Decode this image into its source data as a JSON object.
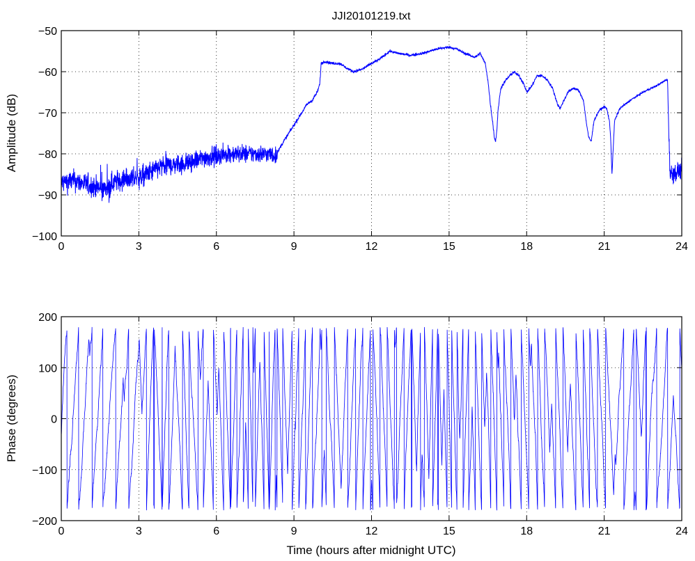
{
  "figure": {
    "background": "#ffffff",
    "line_color": "#0000ff"
  },
  "chart_data": [
    {
      "type": "line",
      "title": "JJI20101219.txt",
      "xlabel": "",
      "ylabel": "Amplitude (dB)",
      "xlim": [
        0,
        24
      ],
      "ylim": [
        -100,
        -50
      ],
      "xticks": [
        0,
        3,
        6,
        9,
        12,
        15,
        18,
        21,
        24
      ],
      "yticks": [
        -100,
        -90,
        -80,
        -70,
        -60,
        -50
      ],
      "grid": true,
      "series": [
        {
          "color": "#0000ff",
          "noise_amplitude": [
            [
              0,
              2.5
            ],
            [
              3.3,
              2.5
            ],
            [
              6.0,
              2.2
            ],
            [
              8.3,
              2.0
            ],
            [
              8.4,
              0.4
            ],
            [
              10.0,
              0.4
            ],
            [
              10.3,
              0.3
            ],
            [
              16.0,
              0.3
            ],
            [
              16.6,
              0.4
            ],
            [
              23.45,
              0.2
            ],
            [
              23.55,
              2.2
            ],
            [
              24,
              2.2
            ]
          ],
          "x": [
            0,
            0.5,
            1.0,
            1.5,
            1.8,
            2.0,
            2.5,
            3.0,
            3.3,
            3.45,
            3.6,
            3.7,
            4.0,
            4.5,
            5.0,
            5.5,
            6.0,
            6.5,
            7.0,
            7.5,
            7.7,
            7.75,
            8.0,
            8.3,
            8.5,
            8.8,
            9.0,
            9.3,
            9.5,
            9.7,
            9.9,
            10.0,
            10.05,
            10.2,
            10.5,
            10.8,
            11.0,
            11.3,
            11.6,
            12.0,
            12.3,
            12.7,
            13.0,
            13.5,
            14.0,
            14.5,
            15.0,
            15.3,
            15.6,
            16.0,
            16.2,
            16.4,
            16.5,
            16.6,
            16.7,
            16.75,
            16.8,
            16.85,
            16.9,
            17.0,
            17.2,
            17.5,
            17.7,
            17.9,
            18.0,
            18.2,
            18.4,
            18.6,
            18.8,
            19.0,
            19.2,
            19.3,
            19.4,
            19.6,
            19.8,
            20.0,
            20.2,
            20.3,
            20.4,
            20.5,
            20.6,
            20.8,
            21.0,
            21.1,
            21.2,
            21.25,
            21.3,
            21.4,
            21.6,
            22.0,
            22.5,
            23.0,
            23.4,
            23.45,
            23.5,
            23.55,
            24.0
          ],
          "y": [
            -87,
            -86.5,
            -87.5,
            -88.5,
            -88.5,
            -87,
            -86,
            -86,
            -85,
            -84.5,
            -84,
            -83.5,
            -83,
            -82.5,
            -82,
            -81,
            -80.5,
            -80,
            -80,
            -80,
            -80,
            -80,
            -80,
            -80.5,
            -78,
            -75,
            -73,
            -70,
            -68,
            -67,
            -65,
            -63,
            -58,
            -57.5,
            -58,
            -58,
            -59,
            -60,
            -59.5,
            -58,
            -57,
            -55,
            -55.5,
            -56,
            -55.5,
            -54.5,
            -54,
            -54.5,
            -55.5,
            -56.5,
            -55.5,
            -58,
            -62,
            -68,
            -73,
            -76,
            -77,
            -74,
            -69,
            -64,
            -62,
            -60,
            -61,
            -63,
            -65,
            -63.5,
            -61,
            -61,
            -62,
            -64,
            -68,
            -69,
            -67.5,
            -65,
            -64,
            -64.5,
            -67,
            -72,
            -76,
            -77,
            -72,
            -69.5,
            -68.5,
            -69,
            -72,
            -76,
            -85,
            -72,
            -69,
            -67,
            -65,
            -63.5,
            -62,
            -62,
            -75,
            -85,
            -84
          ]
        }
      ]
    },
    {
      "type": "line",
      "title": "",
      "xlabel": "Time (hours after midnight UTC)",
      "ylabel": "Phase (degrees)",
      "xlim": [
        0,
        24
      ],
      "ylim": [
        -200,
        200
      ],
      "xticks": [
        0,
        3,
        6,
        9,
        12,
        15,
        18,
        21,
        24
      ],
      "yticks": [
        -200,
        -100,
        0,
        100,
        200
      ],
      "grid": true,
      "series": [
        {
          "color": "#0000ff",
          "wrap_range": [
            -180,
            180
          ],
          "drift_rate": [
            [
              0,
              850
            ],
            [
              2.8,
              850
            ],
            [
              3.2,
              1350
            ],
            [
              6.0,
              1150
            ],
            [
              7.5,
              1800
            ],
            [
              10.0,
              1250
            ],
            [
              13.0,
              1300
            ],
            [
              14.5,
              1850
            ],
            [
              16.5,
              1450
            ],
            [
              19.5,
              1300
            ],
            [
              21.5,
              1000
            ],
            [
              24,
              1000
            ]
          ]
        }
      ]
    }
  ]
}
